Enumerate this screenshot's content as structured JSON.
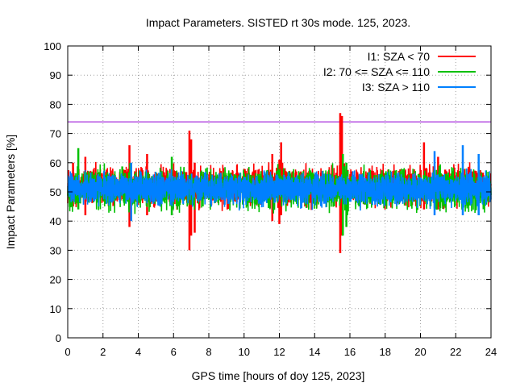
{
  "chart_data": {
    "type": "line",
    "title": "Impact Parameters. SISTED rt 30s mode. 125, 2023.",
    "xlabel": "GPS time [hours of doy 125, 2023]",
    "ylabel": "Impact Parameters [%]",
    "xlim": [
      0,
      24
    ],
    "ylim": [
      0,
      100
    ],
    "x_ticks": [
      0,
      2,
      4,
      6,
      8,
      10,
      12,
      14,
      16,
      18,
      20,
      22,
      24
    ],
    "y_ticks": [
      0,
      10,
      20,
      30,
      40,
      50,
      60,
      70,
      80,
      90,
      100
    ],
    "grid": true,
    "legend_position": "top-right",
    "threshold": {
      "value": 74,
      "color": "#9400d3"
    },
    "series": [
      {
        "name": "I1: SZA < 70",
        "color": "#ff0000",
        "mean": 52,
        "typical_range": [
          44,
          60
        ],
        "spikes": [
          {
            "x": 0.3,
            "min": 45,
            "max": 60
          },
          {
            "x": 1.0,
            "min": 42,
            "max": 62
          },
          {
            "x": 3.5,
            "min": 38,
            "max": 66
          },
          {
            "x": 4.5,
            "min": 42,
            "max": 63
          },
          {
            "x": 6.9,
            "min": 30,
            "max": 71
          },
          {
            "x": 7.0,
            "min": 35,
            "max": 68
          },
          {
            "x": 7.2,
            "min": 36,
            "max": 60
          },
          {
            "x": 11.6,
            "min": 40,
            "max": 63
          },
          {
            "x": 12.0,
            "min": 39,
            "max": 61
          },
          {
            "x": 12.1,
            "min": 42,
            "max": 67
          },
          {
            "x": 15.45,
            "min": 29,
            "max": 77
          },
          {
            "x": 15.55,
            "min": 35,
            "max": 76
          },
          {
            "x": 20.2,
            "min": 44,
            "max": 67
          },
          {
            "x": 21.0,
            "min": 44,
            "max": 62
          }
        ]
      },
      {
        "name": "I2: 70 <= SZA <= 110",
        "color": "#00c000",
        "mean": 51,
        "typical_range": [
          44,
          60
        ],
        "spikes": [
          {
            "x": 0.6,
            "min": 44,
            "max": 65
          },
          {
            "x": 5.9,
            "min": 42,
            "max": 62
          },
          {
            "x": 15.6,
            "min": 35,
            "max": 63
          },
          {
            "x": 15.8,
            "min": 38,
            "max": 60
          }
        ]
      },
      {
        "name": "I3: SZA > 110",
        "color": "#0080ff",
        "mean": 51,
        "typical_range": [
          45,
          58
        ],
        "spikes": [
          {
            "x": 3.6,
            "min": 40,
            "max": 60
          },
          {
            "x": 20.8,
            "min": 42,
            "max": 64
          },
          {
            "x": 22.4,
            "min": 42,
            "max": 66
          },
          {
            "x": 23.3,
            "min": 42,
            "max": 63
          }
        ]
      }
    ]
  }
}
